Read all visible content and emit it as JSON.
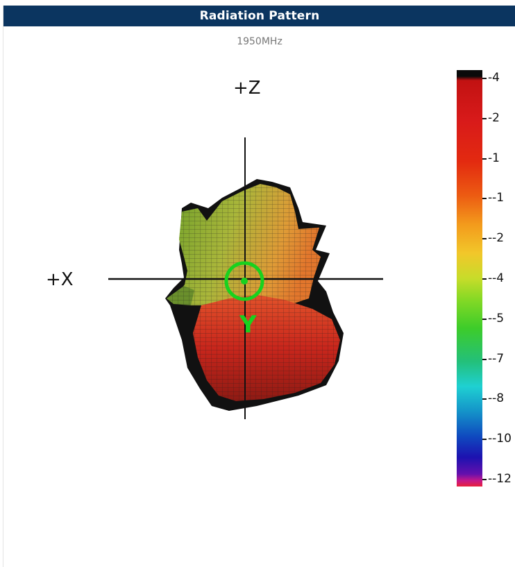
{
  "header": {
    "title": "Radiation Pattern"
  },
  "subtitle": "1950MHz",
  "plot": {
    "axis_labels": {
      "z": "+Z",
      "x": "+X",
      "y": "Y"
    },
    "colors": {
      "header_bg": "#0b3560",
      "marker": "#18d21e",
      "axes": "#111111"
    }
  },
  "color_scale": {
    "ticks": [
      "-4",
      "-2",
      "-1",
      "--1",
      "--2",
      "--4",
      "--5",
      "--7",
      "--8",
      "--10",
      "--12"
    ]
  }
}
